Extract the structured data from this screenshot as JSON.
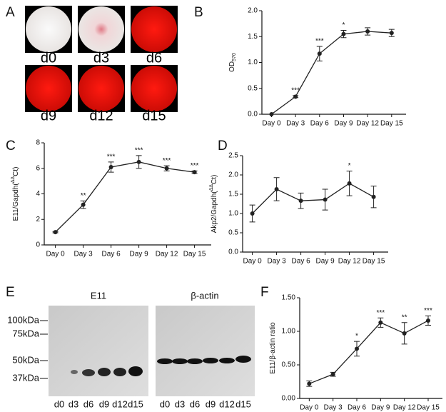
{
  "panel_labels": [
    "A",
    "B",
    "C",
    "D",
    "E",
    "F"
  ],
  "wells": [
    "d0",
    "d3",
    "d6",
    "d9",
    "d12",
    "d15"
  ],
  "blot": {
    "titles": [
      "E11",
      "β-actin"
    ],
    "markers": [
      "100kDa",
      "75kDa",
      "50kDa",
      "37kDa"
    ],
    "lanes": [
      "d0",
      "d3",
      "d6",
      "d9",
      "d12",
      "d15"
    ]
  },
  "chart_data": [
    {
      "type": "line",
      "y_label": "OD",
      "y_label_sub": "570",
      "categories": [
        "Day 0",
        "Day 3",
        "Day 6",
        "Day 9",
        "Day 12",
        "Day 15"
      ],
      "values": [
        0,
        0.34,
        1.17,
        1.55,
        1.6,
        1.57
      ],
      "errors": [
        0,
        0.02,
        0.14,
        0.07,
        0.07,
        0.07
      ],
      "annotations": [
        null,
        "***",
        "***",
        "*",
        null,
        null
      ],
      "color": "#222",
      "ylim": [
        0,
        2
      ],
      "yticks": [
        {
          "value": 0,
          "label": "0.0"
        },
        0.5,
        {
          "value": 1,
          "label": "1.0"
        },
        1.5,
        {
          "value": 2,
          "label": "2.0"
        }
      ]
    },
    {
      "type": "line",
      "y_label": "E11/Gapdh(",
      "y_label_sup": "ΔΔ",
      "y_label_end": "Ct)",
      "categories": [
        "Day 0",
        "Day 3",
        "Day 6",
        "Day 9",
        "Day 12",
        "Day 15"
      ],
      "values": [
        1.0,
        3.15,
        6.1,
        6.5,
        6.0,
        5.7
      ],
      "errors": [
        0.05,
        0.3,
        0.4,
        0.5,
        0.2,
        0.1
      ],
      "annotations": [
        null,
        "**",
        "***",
        "***",
        "***",
        "***"
      ],
      "color": "#222",
      "ylim": [
        0,
        8
      ],
      "yticks": [
        0,
        2,
        4,
        6,
        8
      ]
    },
    {
      "type": "line",
      "y_label": "Akp2/Gapdh(",
      "y_label_sup": "ΔΔ",
      "y_label_end": "Ct)",
      "categories": [
        "Day 0",
        "Day 3",
        "Day 6",
        "Day 9",
        "Day 12",
        "Day 15"
      ],
      "values": [
        1.0,
        1.63,
        1.33,
        1.36,
        1.78,
        1.43
      ],
      "errors": [
        0.22,
        0.3,
        0.2,
        0.27,
        0.32,
        0.28
      ],
      "annotations": [
        null,
        null,
        null,
        null,
        "*",
        null
      ],
      "color": "#222",
      "ylim": [
        0,
        2.5
      ],
      "yticks": [
        {
          "value": 0,
          "label": "0.0"
        },
        0.5,
        {
          "value": 1,
          "label": "1.0"
        },
        1.5,
        {
          "value": 2,
          "label": "2.0"
        },
        2.5
      ]
    },
    {
      "type": "line",
      "y_label": "E11/β-actin ratio",
      "categories": [
        "Day 0",
        "Day 3",
        "Day 6",
        "Day 9",
        "Day 12",
        "Day 15"
      ],
      "values": [
        0.22,
        0.36,
        0.74,
        1.13,
        0.97,
        1.16
      ],
      "errors": [
        0.04,
        0.03,
        0.11,
        0.07,
        0.16,
        0.07
      ],
      "annotations": [
        null,
        null,
        "*",
        "***",
        "**",
        "***"
      ],
      "color": "#222",
      "ylim": [
        0,
        1.5
      ],
      "yticks": [
        {
          "value": 0,
          "label": "0.00"
        },
        {
          "value": 0.5,
          "label": "0.50"
        },
        {
          "value": 1,
          "label": "1.00"
        },
        {
          "value": 1.5,
          "label": "1.50"
        }
      ]
    }
  ]
}
